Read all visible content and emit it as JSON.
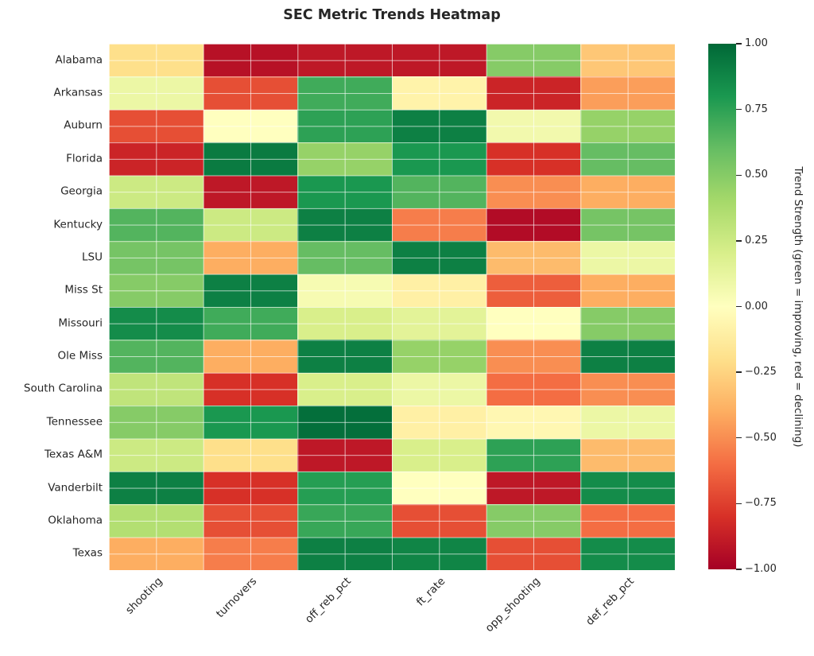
{
  "title": "SEC Metric Trends Heatmap",
  "colorbar": {
    "label": "Trend Strength (green = improving, red = declining)",
    "ticks": [
      "1.00",
      "0.75",
      "0.50",
      "0.25",
      "0.00",
      "−0.25",
      "−0.50",
      "−0.75",
      "−1.00"
    ],
    "vmin_color": "#a50026",
    "mid_color": "#ffffbf",
    "vmax_color": "#006837"
  },
  "chart_data": {
    "type": "heatmap",
    "title": "SEC Metric Trends Heatmap",
    "colormap": "RdYlGn",
    "vmin": -1.0,
    "vmax": 1.0,
    "legend_position": "right",
    "colorbar_label": "Trend Strength (green = improving, red = declining)",
    "columns": [
      "shooting",
      "turnovers",
      "off_reb_pct",
      "ft_rate",
      "opp_shooting",
      "def_reb_pct"
    ],
    "rows": [
      "Alabama",
      "Arkansas",
      "Auburn",
      "Florida",
      "Georgia",
      "Kentucky",
      "LSU",
      "Miss St",
      "Missouri",
      "Ole Miss",
      "South Carolina",
      "Tennessee",
      "Texas A&M",
      "Vanderbilt",
      "Oklahoma",
      "Texas"
    ],
    "values": [
      [
        -0.2,
        -0.93,
        -0.9,
        -0.9,
        0.5,
        -0.3
      ],
      [
        0.1,
        -0.7,
        0.7,
        -0.08,
        -0.85,
        -0.45
      ],
      [
        -0.7,
        0.0,
        0.75,
        0.9,
        0.07,
        0.45
      ],
      [
        -0.85,
        0.92,
        0.45,
        0.8,
        -0.8,
        0.6
      ],
      [
        0.25,
        -0.9,
        0.8,
        0.65,
        -0.5,
        -0.4
      ],
      [
        0.65,
        0.25,
        0.9,
        -0.55,
        -0.95,
        0.55
      ],
      [
        0.55,
        -0.4,
        0.6,
        0.9,
        -0.35,
        0.1
      ],
      [
        0.5,
        0.9,
        0.05,
        -0.1,
        -0.65,
        -0.4
      ],
      [
        0.85,
        0.7,
        0.2,
        0.15,
        0.0,
        0.5
      ],
      [
        0.65,
        -0.4,
        0.9,
        0.45,
        -0.5,
        0.9
      ],
      [
        0.3,
        -0.8,
        0.2,
        0.1,
        -0.6,
        -0.5
      ],
      [
        0.5,
        0.8,
        0.97,
        -0.1,
        -0.05,
        0.1
      ],
      [
        0.25,
        -0.2,
        -0.9,
        0.2,
        0.75,
        -0.35
      ],
      [
        0.9,
        -0.8,
        0.77,
        0.0,
        -0.9,
        0.85
      ],
      [
        0.35,
        -0.7,
        0.72,
        -0.7,
        0.5,
        -0.6
      ],
      [
        -0.4,
        -0.55,
        0.9,
        0.88,
        -0.7,
        0.85
      ]
    ]
  }
}
